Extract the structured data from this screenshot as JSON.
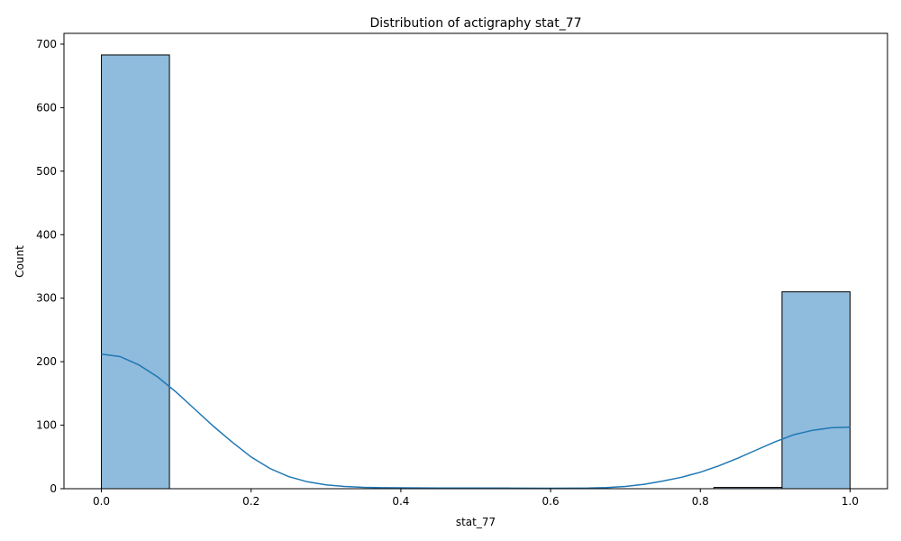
{
  "chart_data": {
    "type": "bar",
    "title": "Distribution of actigraphy stat_77",
    "xlabel": "stat_77",
    "ylabel": "Count",
    "xlim": [
      -0.05,
      1.05
    ],
    "ylim": [
      0,
      717
    ],
    "xticks": [
      0.0,
      0.2,
      0.4,
      0.6,
      0.8,
      1.0
    ],
    "xtick_labels": [
      "0.0",
      "0.2",
      "0.4",
      "0.6",
      "0.8",
      "1.0"
    ],
    "yticks": [
      0,
      100,
      200,
      300,
      400,
      500,
      600,
      700
    ],
    "ytick_labels": [
      "0",
      "100",
      "200",
      "300",
      "400",
      "500",
      "600",
      "700"
    ],
    "grid": false,
    "bins": [
      {
        "x0": 0.0,
        "x1": 0.0909,
        "count": 683
      },
      {
        "x0": 0.0909,
        "x1": 0.1818,
        "count": 0
      },
      {
        "x0": 0.1818,
        "x1": 0.2727,
        "count": 0
      },
      {
        "x0": 0.2727,
        "x1": 0.3636,
        "count": 0
      },
      {
        "x0": 0.3636,
        "x1": 0.4545,
        "count": 1
      },
      {
        "x0": 0.4545,
        "x1": 0.5455,
        "count": 1
      },
      {
        "x0": 0.5455,
        "x1": 0.6364,
        "count": 0
      },
      {
        "x0": 0.6364,
        "x1": 0.7273,
        "count": 0
      },
      {
        "x0": 0.7273,
        "x1": 0.8182,
        "count": 0
      },
      {
        "x0": 0.8182,
        "x1": 0.9091,
        "count": 2
      },
      {
        "x0": 0.9091,
        "x1": 1.0,
        "count": 310
      }
    ],
    "kde": {
      "x": [
        0.0,
        0.025,
        0.05,
        0.075,
        0.1,
        0.125,
        0.15,
        0.175,
        0.2,
        0.225,
        0.25,
        0.275,
        0.3,
        0.325,
        0.35,
        0.375,
        0.4,
        0.45,
        0.5,
        0.55,
        0.6,
        0.65,
        0.675,
        0.7,
        0.725,
        0.75,
        0.775,
        0.8,
        0.825,
        0.85,
        0.875,
        0.9,
        0.925,
        0.95,
        0.975,
        1.0
      ],
      "y": [
        212,
        208,
        195,
        176,
        152,
        125,
        98,
        73,
        50,
        32,
        19,
        11,
        6,
        3.5,
        2.2,
        1.6,
        1.4,
        1.2,
        1.0,
        0.8,
        0.7,
        1.0,
        1.8,
        3.5,
        7,
        12,
        18,
        26,
        36,
        48,
        61,
        74,
        85,
        92,
        96,
        97
      ]
    },
    "colors": {
      "bar_fill": "#8fbbdc",
      "bar_edge": "#000000",
      "kde_line": "#1f77b4"
    }
  }
}
